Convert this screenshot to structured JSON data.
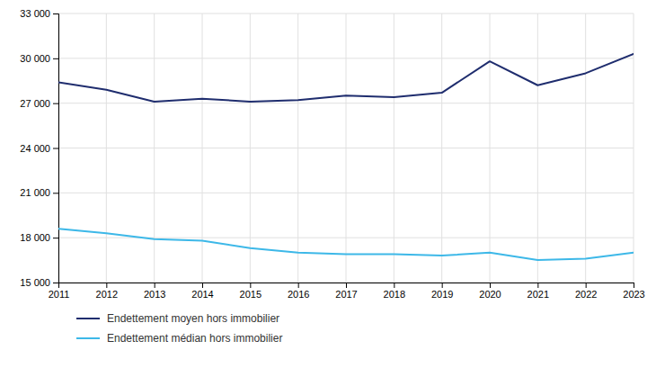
{
  "chart_data": {
    "type": "line",
    "x": [
      2011,
      2012,
      2013,
      2014,
      2015,
      2016,
      2017,
      2018,
      2019,
      2020,
      2021,
      2022,
      2023
    ],
    "series": [
      {
        "name": "Endettement moyen hors immobilier",
        "color": "#1f2d6e",
        "values": [
          28400,
          27900,
          27100,
          27300,
          27100,
          27200,
          27500,
          27400,
          27700,
          29800,
          28200,
          29000,
          30300
        ]
      },
      {
        "name": "Endettement médian hors immobilier",
        "color": "#3db8e8",
        "values": [
          18600,
          18300,
          17900,
          17800,
          17300,
          17000,
          16900,
          16900,
          16800,
          17000,
          16500,
          16600,
          17000
        ]
      }
    ],
    "xlim": [
      2011,
      2023
    ],
    "xticks": [
      2011,
      2012,
      2013,
      2014,
      2015,
      2016,
      2017,
      2018,
      2019,
      2020,
      2021,
      2022,
      2023
    ],
    "ylim": [
      15000,
      33000
    ],
    "yticks": [
      {
        "value": 15000,
        "label": "15 000"
      },
      {
        "value": 18000,
        "label": "18 000"
      },
      {
        "value": 21000,
        "label": "21 000"
      },
      {
        "value": 24000,
        "label": "24 000"
      },
      {
        "value": 27000,
        "label": "27 000"
      },
      {
        "value": 30000,
        "label": "30 000"
      },
      {
        "value": 33000,
        "label": "33 000"
      }
    ],
    "grid": true,
    "legend": "bottom"
  }
}
